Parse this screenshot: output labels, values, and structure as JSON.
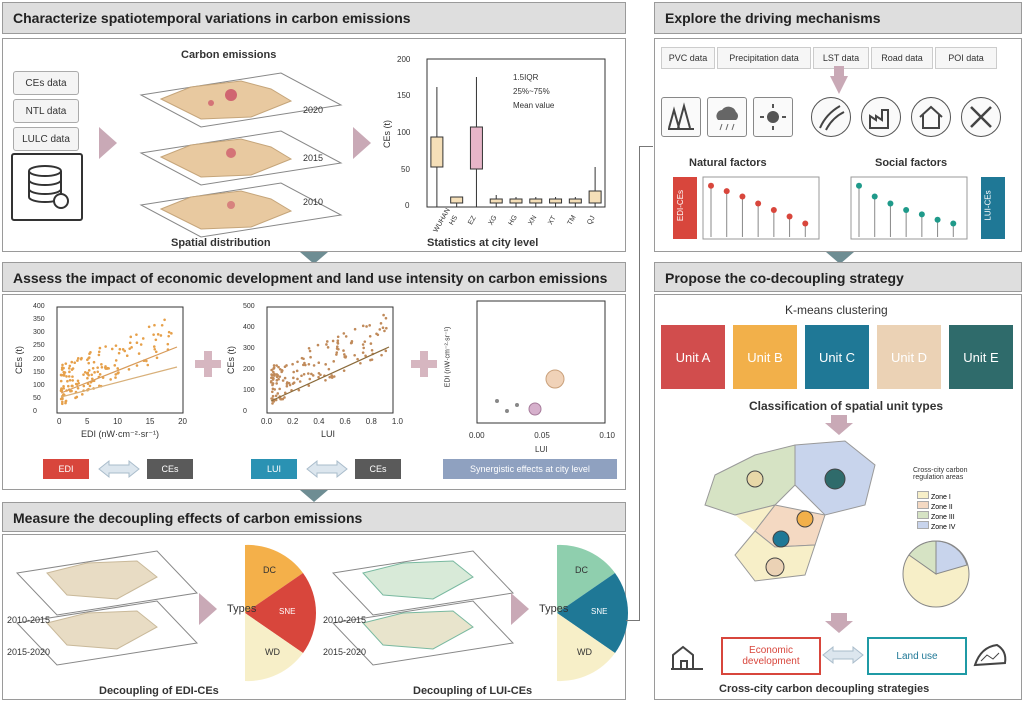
{
  "headers": {
    "h1": "Characterize spatiotemporal variations in carbon emissions",
    "h2": "Assess the impact of economic development and land use intensity on carbon emissions",
    "h3": "Measure the decoupling effects of carbon emissions",
    "h4": "Explore the driving mechanisms",
    "h5": "Propose the co-decoupling strategy"
  },
  "panel1": {
    "data_sources": [
      "CEs data",
      "NTL data",
      "LULC data"
    ],
    "map_title": "Carbon emissions",
    "years": [
      "2020",
      "2015",
      "2010"
    ],
    "spatial_caption": "Spatial distribution",
    "legend": [
      "1.5IQR",
      "25%~75%",
      "Mean value"
    ],
    "box_ylabel": "CEs (t)",
    "box_yticks": [
      "200",
      "150",
      "100",
      "50",
      "0"
    ],
    "box_cities": [
      "WUHAN",
      "HS",
      "EZ",
      "XG",
      "HG",
      "XN",
      "XT",
      "TM",
      "QJ"
    ],
    "box_caption": "Statistics at city level"
  },
  "panel2": {
    "scatter1_ylabel": "CEs (t)",
    "scatter1_xlabel": "EDI (nW·cm⁻²·sr⁻¹)",
    "scatter1_yticks": [
      "400",
      "350",
      "300",
      "250",
      "200",
      "150",
      "100",
      "50",
      "0"
    ],
    "scatter1_xticks": [
      "0",
      "5",
      "10",
      "15",
      "20"
    ],
    "scatter2_ylabel": "CEs (t)",
    "scatter2_xlabel": "LUI",
    "scatter2_yticks": [
      "500",
      "400",
      "300",
      "200",
      "100",
      "0"
    ],
    "scatter2_xticks": [
      "0.0",
      "0.2",
      "0.4",
      "0.6",
      "0.8",
      "1.0"
    ],
    "bubble_ylabel": "EDI (nW·cm⁻²·sr⁻¹)",
    "bubble_xlabel": "LUI",
    "bubble_xticks": [
      "0.00",
      "0.05",
      "0.10"
    ],
    "chip_edi": "EDI",
    "chip_ces": "CEs",
    "chip_lui": "LUI",
    "synergy": "Synergistic effects at city level"
  },
  "panel3": {
    "periods_left": [
      "2010-2015",
      "2015-2020"
    ],
    "periods_right": [
      "2010-2015",
      "2015-2020"
    ],
    "types": "Types",
    "wedges": [
      "DC",
      "SNE",
      "WD"
    ],
    "caption_left": "Decoupling of EDI-CEs",
    "caption_right": "Decoupling of LUI-CEs"
  },
  "panel4": {
    "tabs": [
      "PVC data",
      "Precipitation data",
      "LST data",
      "Road data",
      "POI data"
    ],
    "natural": "Natural factors",
    "social": "Social factors",
    "edi_label": "EDI-CEs",
    "lui_label": "LUI-CEs",
    "lollipop_left": [
      0.95,
      0.85,
      0.75,
      0.62,
      0.5,
      0.38,
      0.25
    ],
    "lollipop_right": [
      0.95,
      0.75,
      0.62,
      0.5,
      0.42,
      0.32,
      0.25
    ]
  },
  "panel5": {
    "kmeans": "K-means clustering",
    "units": [
      "Unit A",
      "Unit B",
      "Unit C",
      "Unit D",
      "Unit E"
    ],
    "unit_colors": [
      "#d14d4d",
      "#f2b04a",
      "#1f7896",
      "#ebd2b5",
      "#2f6b6b"
    ],
    "classification": "Classification of spatial unit types",
    "map_legend_title": "Cross-city carbon regulation areas",
    "map_legend": [
      "Zone I",
      "Zone II",
      "Zone III",
      "Zone IV"
    ],
    "econ": "Economic development",
    "landuse": "Land use",
    "final": "Cross-city carbon decoupling strategies"
  },
  "colors": {
    "arrow": "#c9a9b6",
    "down_arrow": "#6e8d93",
    "edi": "#d8463c",
    "ces": "#5a5a5a",
    "lui": "#2a92b3",
    "synergy": "#8fa1c0"
  }
}
